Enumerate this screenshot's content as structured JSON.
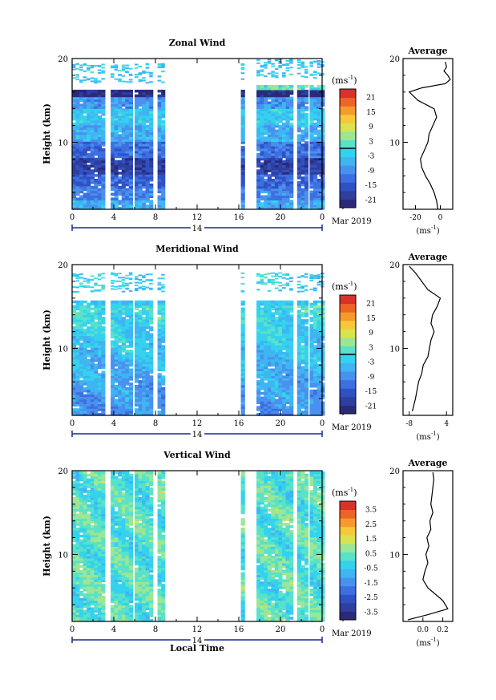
{
  "chart_data": [
    {
      "type": "heatmap",
      "title": "Zonal Wind",
      "ylabel": "Height (km)",
      "ylim": [
        2,
        20
      ],
      "yticks": [
        "20",
        "10"
      ],
      "xticks": [
        "0",
        "4",
        "8",
        "12",
        "16",
        "20",
        "0"
      ],
      "xlim": [
        0,
        24
      ],
      "day_label": "14",
      "date_label": "Mar 2019",
      "colorbar": {
        "unit": "(ms",
        "unit_sup": "-1",
        "unit_close": ")",
        "ticks": [
          "21",
          "15",
          "9",
          "3",
          "-3",
          "-9",
          "-15",
          "-21"
        ],
        "min": -24,
        "max": 24
      },
      "profile": {
        "title": "Average",
        "xticks": [
          "-20",
          "0"
        ],
        "xlim": [
          -30,
          10
        ],
        "xlabel": "(ms",
        "xlabel_sup": "-1",
        "xlabel_close": ")",
        "points": [
          [
            -2,
            2
          ],
          [
            -3,
            3
          ],
          [
            -5,
            4
          ],
          [
            -8,
            5
          ],
          [
            -12,
            6
          ],
          [
            -15,
            7
          ],
          [
            -16,
            8
          ],
          [
            -13,
            9
          ],
          [
            -10,
            10
          ],
          [
            -9,
            11
          ],
          [
            -6,
            12
          ],
          [
            -3,
            13
          ],
          [
            -5,
            14
          ],
          [
            -18,
            15
          ],
          [
            -25,
            16
          ],
          [
            -15,
            16.5
          ],
          [
            4,
            17
          ],
          [
            8,
            17.5
          ],
          [
            6,
            18
          ],
          [
            3,
            18.5
          ],
          [
            5,
            19
          ],
          [
            4,
            19.6
          ]
        ]
      }
    },
    {
      "type": "heatmap",
      "title": "Meridional Wind",
      "ylabel": "Height (km)",
      "ylim": [
        2,
        20
      ],
      "yticks": [
        "20",
        "10"
      ],
      "xticks": [
        "0",
        "4",
        "8",
        "12",
        "16",
        "20",
        "0"
      ],
      "xlim": [
        0,
        24
      ],
      "day_label": "14",
      "date_label": "Mar 2019",
      "colorbar": {
        "unit": "(ms",
        "unit_sup": "-1",
        "unit_close": ")",
        "ticks": [
          "21",
          "15",
          "9",
          "3",
          "-3",
          "-9",
          "-15",
          "-21"
        ],
        "min": -24,
        "max": 24
      },
      "profile": {
        "title": "Average",
        "xticks": [
          "-8",
          "4"
        ],
        "xlim": [
          -10,
          6
        ],
        "xlabel": "(ms",
        "xlabel_sup": "-1",
        "xlabel_close": ")",
        "points": [
          [
            -7,
            2.5
          ],
          [
            -6,
            4
          ],
          [
            -5.5,
            5
          ],
          [
            -5,
            6
          ],
          [
            -4,
            7
          ],
          [
            -3.5,
            8
          ],
          [
            -2,
            9
          ],
          [
            -1.5,
            10
          ],
          [
            -1,
            11
          ],
          [
            0,
            12
          ],
          [
            -1,
            13
          ],
          [
            -0.5,
            14
          ],
          [
            1,
            15
          ],
          [
            2,
            16
          ],
          [
            -2,
            17
          ],
          [
            -4,
            18
          ],
          [
            -6,
            19
          ],
          [
            -8,
            19.8
          ]
        ]
      }
    },
    {
      "type": "heatmap",
      "title": "Vertical Wind",
      "ylabel": "Height (km)",
      "ylim": [
        2,
        20
      ],
      "yticks": [
        "20",
        "10"
      ],
      "xticks": [
        "0",
        "4",
        "8",
        "12",
        "16",
        "20",
        "0"
      ],
      "xlim": [
        0,
        24
      ],
      "day_label": "14",
      "date_label": "Mar 2019",
      "xlabel": "Local Time",
      "colorbar": {
        "unit": "(ms",
        "unit_sup": "-1",
        "unit_close": ")",
        "ticks": [
          "3.5",
          "2.5",
          "1.5",
          "0.5",
          "-0.5",
          "-1.5",
          "-2.5",
          "-3.5"
        ],
        "min": -4,
        "max": 4
      },
      "profile": {
        "title": "Average",
        "xticks": [
          "0.0",
          "0.2"
        ],
        "xlim": [
          -0.2,
          0.3
        ],
        "xlabel": "(ms",
        "xlabel_sup": "-1",
        "xlabel_close": ")",
        "points": [
          [
            -0.15,
            2.2
          ],
          [
            0.05,
            2.8
          ],
          [
            0.25,
            3.5
          ],
          [
            0.2,
            4.5
          ],
          [
            0.05,
            6
          ],
          [
            0.0,
            7
          ],
          [
            0.02,
            8
          ],
          [
            0.05,
            9
          ],
          [
            0.03,
            10
          ],
          [
            0.06,
            11
          ],
          [
            0.04,
            12
          ],
          [
            0.08,
            13
          ],
          [
            0.07,
            14
          ],
          [
            0.1,
            15
          ],
          [
            0.08,
            16
          ],
          [
            0.09,
            17
          ],
          [
            0.1,
            18
          ],
          [
            0.11,
            19
          ],
          [
            0.1,
            19.8
          ]
        ]
      }
    }
  ]
}
